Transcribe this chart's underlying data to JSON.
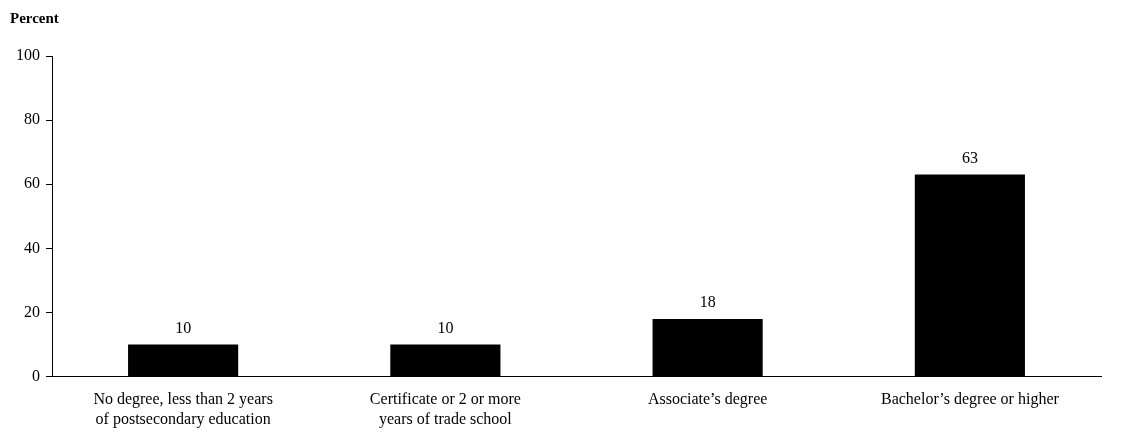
{
  "chart_data": {
    "type": "bar",
    "ylabel": "Percent",
    "categories": [
      "No degree, less than 2 years of postsecondary education",
      "Certificate or 2 or more years of trade school",
      "Associate’s degree",
      "Bachelor’s degree or higher"
    ],
    "values": [
      10,
      10,
      18,
      63
    ],
    "color": "#000000",
    "ylim": [
      0,
      100
    ],
    "yticks": [
      0,
      20,
      40,
      60,
      80,
      100
    ],
    "grid": false,
    "legend": false,
    "data_labels": true
  }
}
